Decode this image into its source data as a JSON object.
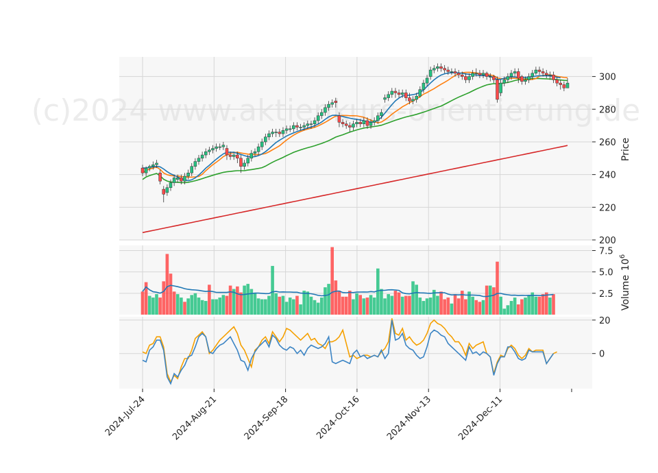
{
  "watermark": "(c)2024 www.aktienkurs-orientierung.de",
  "colors": {
    "up": "#26c281",
    "down": "#ff4a4a",
    "panel_bg": "#f7f7f7",
    "grid": "#d6d6d6",
    "ma_short": "#1f77b4",
    "ma_mid": "#ff7f0e",
    "ma_long": "#2ca02c",
    "ma_200": "#d62728",
    "vol_ma": "#1f77b4",
    "osc_a": "#f5a000",
    "osc_b": "#3b84c4"
  },
  "chart_data": [
    {
      "type": "candlestick",
      "ylabel": "Price",
      "ylim": [
        200,
        312
      ],
      "yticks": [
        200,
        220,
        240,
        260,
        280,
        300
      ],
      "dates_start": "2024-07-24",
      "close": [
        241,
        244,
        245,
        246,
        247,
        236,
        228,
        232,
        235,
        238,
        238,
        236,
        239,
        241,
        245,
        248,
        250,
        252,
        254,
        255,
        256,
        257,
        257,
        258,
        252,
        251,
        252,
        250,
        245,
        247,
        250,
        253,
        254,
        257,
        260,
        263,
        265,
        266,
        266,
        265,
        267,
        268,
        268,
        270,
        269,
        269,
        270,
        271,
        271,
        273,
        276,
        278,
        281,
        283,
        284,
        284,
        272,
        271,
        270,
        269,
        271,
        272,
        271,
        273,
        270,
        272,
        273,
        276,
        278,
        287,
        289,
        291,
        290,
        289,
        290,
        287,
        285,
        286,
        288,
        292,
        296,
        299,
        304,
        305,
        306,
        305,
        304,
        303,
        303,
        302,
        301,
        300,
        298,
        300,
        302,
        302,
        301,
        302,
        300,
        300,
        298,
        286,
        296,
        298,
        300,
        302,
        303,
        299,
        297,
        298,
        300,
        302,
        304,
        303,
        302,
        301,
        301,
        298,
        296,
        295,
        293,
        296
      ],
      "open": [
        244,
        241,
        244,
        245,
        246,
        241,
        231,
        229,
        232,
        235,
        237,
        238,
        236,
        239,
        241,
        245,
        248,
        250,
        252,
        254,
        255,
        256,
        257,
        257,
        256,
        252,
        251,
        252,
        250,
        245,
        247,
        250,
        253,
        254,
        257,
        260,
        263,
        265,
        266,
        266,
        265,
        267,
        268,
        268,
        270,
        269,
        269,
        270,
        271,
        271,
        273,
        276,
        278,
        281,
        283,
        285,
        276,
        272,
        271,
        270,
        269,
        271,
        272,
        271,
        273,
        270,
        272,
        273,
        276,
        286,
        287,
        289,
        291,
        290,
        289,
        290,
        287,
        285,
        286,
        288,
        292,
        296,
        300,
        304,
        305,
        306,
        305,
        304,
        303,
        303,
        302,
        301,
        300,
        298,
        300,
        302,
        302,
        301,
        302,
        300,
        300,
        298,
        290,
        296,
        298,
        300,
        302,
        303,
        300,
        297,
        298,
        300,
        302,
        304,
        303,
        302,
        301,
        301,
        298,
        296,
        295,
        293
      ],
      "high": [
        246,
        245,
        246,
        248,
        249,
        243,
        233,
        234,
        237,
        240,
        240,
        240,
        241,
        243,
        247,
        250,
        252,
        254,
        256,
        257,
        258,
        259,
        259,
        260,
        258,
        254,
        254,
        254,
        252,
        249,
        252,
        255,
        256,
        259,
        262,
        265,
        267,
        268,
        268,
        268,
        269,
        270,
        270,
        272,
        272,
        271,
        272,
        273,
        273,
        275,
        278,
        280,
        283,
        285,
        286,
        287,
        278,
        274,
        273,
        272,
        273,
        274,
        274,
        275,
        275,
        274,
        275,
        278,
        280,
        289,
        291,
        293,
        293,
        292,
        292,
        292,
        290,
        288,
        290,
        294,
        298,
        301,
        306,
        307,
        308,
        308,
        307,
        306,
        305,
        305,
        304,
        303,
        302,
        302,
        304,
        305,
        304,
        304,
        303,
        302,
        301,
        300,
        298,
        300,
        302,
        304,
        305,
        305,
        301,
        300,
        302,
        304,
        306,
        306,
        305,
        304,
        303,
        303,
        300,
        298,
        297,
        299
      ],
      "low": [
        239,
        239,
        242,
        243,
        244,
        234,
        223,
        227,
        230,
        233,
        235,
        234,
        234,
        237,
        239,
        243,
        246,
        248,
        250,
        252,
        253,
        254,
        255,
        255,
        249,
        249,
        249,
        247,
        241,
        243,
        245,
        248,
        251,
        252,
        255,
        258,
        261,
        263,
        263,
        263,
        263,
        265,
        266,
        266,
        267,
        267,
        267,
        268,
        268,
        269,
        271,
        274,
        276,
        279,
        281,
        281,
        269,
        269,
        268,
        266,
        267,
        269,
        269,
        269,
        268,
        268,
        270,
        271,
        274,
        284,
        285,
        287,
        287,
        287,
        287,
        285,
        283,
        283,
        284,
        287,
        290,
        294,
        298,
        302,
        303,
        303,
        302,
        301,
        301,
        300,
        299,
        298,
        296,
        296,
        298,
        300,
        299,
        299,
        298,
        297,
        296,
        284,
        288,
        294,
        296,
        298,
        300,
        296,
        295,
        295,
        296,
        298,
        301,
        301,
        300,
        299,
        298,
        296,
        294,
        292,
        291,
        293
      ]
    },
    {
      "type": "bar",
      "ylabel": "Volume",
      "yunit": "10^6",
      "ylim": [
        0,
        8.1
      ],
      "yticks": [
        2.5,
        5.0,
        7.5
      ],
      "values": [
        2.7,
        3.8,
        2.2,
        2.0,
        2.4,
        2.0,
        3.9,
        7.1,
        4.8,
        2.7,
        2.4,
        2.0,
        1.5,
        1.9,
        2.3,
        2.5,
        2.0,
        1.7,
        1.6,
        3.5,
        1.8,
        1.8,
        2.0,
        2.3,
        2.2,
        3.4,
        3.0,
        3.3,
        2.6,
        3.4,
        3.6,
        3.0,
        2.5,
        1.9,
        1.8,
        1.8,
        2.2,
        5.7,
        2.5,
        2.1,
        2.2,
        1.5,
        2.0,
        1.8,
        2.2,
        1.2,
        2.8,
        2.7,
        2.1,
        1.7,
        1.4,
        2.0,
        3.2,
        3.6,
        7.9,
        4.0,
        2.8,
        2.1,
        2.1,
        2.8,
        1.8,
        2.5,
        2.3,
        1.9,
        2.0,
        2.3,
        2.0,
        5.4,
        3.0,
        1.9,
        2.4,
        2.2,
        2.8,
        2.6,
        2.1,
        2.2,
        2.2,
        3.9,
        3.5,
        2.0,
        1.6,
        1.9,
        2.0,
        2.9,
        2.2,
        2.7,
        1.8,
        2.0,
        1.3,
        2.4,
        1.9,
        2.8,
        1.8,
        2.7,
        2.1,
        1.7,
        1.5,
        1.7,
        3.4,
        3.4,
        3.2,
        6.2,
        2.1,
        0.7,
        1.1,
        1.6,
        2.0,
        1.2,
        1.8,
        2.0,
        2.2,
        2.6,
        2.1,
        2.1,
        2.4,
        2.6,
        2.0,
        2.4
      ],
      "up": [
        0,
        0,
        1,
        1,
        1,
        0,
        0,
        0,
        0,
        0,
        1,
        1,
        0,
        1,
        1,
        1,
        1,
        1,
        1,
        0,
        1,
        1,
        1,
        1,
        0,
        0,
        1,
        0,
        0,
        1,
        1,
        1,
        1,
        1,
        1,
        1,
        1,
        1,
        1,
        0,
        1,
        1,
        1,
        1,
        0,
        1,
        1,
        1,
        1,
        1,
        1,
        1,
        1,
        1,
        0,
        0,
        0,
        0,
        0,
        0,
        1,
        1,
        0,
        1,
        0,
        1,
        1,
        1,
        1,
        1,
        1,
        1,
        0,
        0,
        1,
        0,
        0,
        1,
        1,
        1,
        1,
        1,
        1,
        1,
        1,
        0,
        0,
        0,
        1,
        0,
        0,
        0,
        0,
        1,
        1,
        0,
        0,
        1,
        0,
        1,
        0,
        0,
        1,
        1,
        1,
        1,
        1,
        0,
        0,
        1,
        1,
        1,
        1,
        0,
        0,
        0,
        1,
        0,
        0,
        1,
        0,
        1
      ]
    },
    {
      "type": "line",
      "ylim": [
        -21,
        22
      ],
      "yticks": [
        0,
        20
      ],
      "series": [
        {
          "values": [
            1,
            0,
            5,
            6,
            10,
            10,
            4,
            -12,
            -17,
            -13,
            -15,
            -8,
            -3,
            -3,
            2,
            9,
            11,
            13,
            10,
            0,
            2,
            5,
            8,
            10,
            12,
            14,
            16,
            12,
            5,
            2,
            -3,
            -8,
            2,
            4,
            8,
            10,
            6,
            13,
            10,
            7,
            10,
            15,
            14,
            12,
            10,
            8,
            10,
            12,
            8,
            9,
            6,
            5,
            3,
            7,
            7,
            8,
            10,
            14,
            6,
            -2,
            -1,
            -3,
            -2,
            -1,
            -1,
            -2,
            -1,
            -2,
            1,
            3,
            7,
            21,
            12,
            11,
            15,
            8,
            10,
            7,
            5,
            6,
            8,
            12,
            18,
            20,
            18,
            17,
            15,
            12,
            10,
            7,
            7,
            4,
            -1,
            6,
            3,
            5,
            6,
            7,
            0,
            -2,
            -12,
            -5,
            -1,
            -2,
            3,
            5,
            3,
            -1,
            -3,
            -1,
            3,
            1,
            2,
            2,
            2,
            -6,
            -3,
            0,
            1
          ]
        },
        {
          "values": [
            -4,
            -5,
            2,
            4,
            8,
            8,
            2,
            -14,
            -18,
            -12,
            -14,
            -10,
            -7,
            -2,
            -1,
            4,
            10,
            12,
            10,
            1,
            0,
            3,
            5,
            6,
            8,
            10,
            6,
            2,
            -4,
            -5,
            -10,
            -3,
            1,
            4,
            6,
            8,
            4,
            11,
            9,
            5,
            3,
            2,
            4,
            3,
            0,
            2,
            -1,
            3,
            5,
            4,
            3,
            4,
            6,
            10,
            -5,
            -6,
            -5,
            -4,
            -5,
            -6,
            0,
            2,
            -2,
            -1,
            -3,
            -2,
            -1,
            -2,
            2,
            -3,
            0,
            20,
            8,
            9,
            12,
            5,
            3,
            2,
            -1,
            -3,
            -2,
            4,
            12,
            14,
            13,
            11,
            10,
            6,
            4,
            2,
            0,
            -2,
            -4,
            4,
            0,
            1,
            -1,
            1,
            0,
            -2,
            -13,
            -6,
            -2,
            -2,
            4,
            4,
            1,
            -3,
            -4,
            -3,
            2,
            1,
            1,
            1,
            1,
            -6,
            -3,
            0
          ]
        }
      ]
    }
  ],
  "overlays": {
    "ma_short": [
      244,
      244,
      244.5,
      244.7,
      245,
      244.7,
      243.4,
      241.8,
      240.5,
      239.5,
      238.5,
      237.5,
      236.8,
      236.3,
      236.8,
      238,
      239.7,
      241.7,
      243.9,
      245.7,
      247.6,
      249.4,
      251.1,
      252.7,
      253.6,
      253.7,
      253.6,
      253,
      252.3,
      251.6,
      251,
      250.8,
      251,
      251.6,
      252.6,
      254,
      255.8,
      257.7,
      259.6,
      261,
      262.3,
      263.6,
      264.6,
      265.5,
      266.3,
      267.1,
      267.8,
      268.5,
      269.1,
      269.9,
      270.9,
      272.2,
      273.8,
      275.3,
      276.2,
      276.3,
      276,
      275.5,
      275,
      274.5,
      274.1,
      273.8,
      273.4,
      272.9,
      272.4,
      272.1,
      272.1,
      273.2,
      275,
      277.6,
      280.2,
      282.8,
      285.1,
      286.8,
      288.1,
      288.4,
      288.6,
      288.9,
      289.4,
      290.3,
      291.8,
      293.9,
      296.1,
      298,
      299.6,
      300.9,
      301.7,
      302.1,
      302.3,
      302.3,
      302.2,
      302,
      301.6,
      301.3,
      301.1,
      300.9,
      300.7,
      300.6,
      300.5,
      300.3,
      299,
      298.2,
      298.3,
      298.9,
      299.4,
      299.8,
      299.7,
      299.5,
      299.4,
      299.4,
      299.6,
      299.9,
      300.3,
      300.5,
      300.5,
      300.5,
      300.4,
      300,
      299.6,
      299.2
    ]
  }
}
